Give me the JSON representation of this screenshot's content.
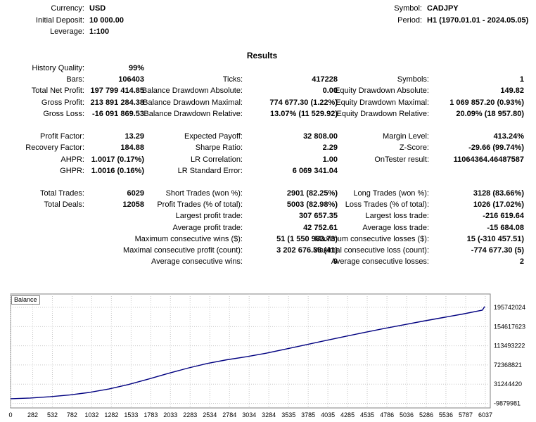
{
  "header": {
    "left": [
      {
        "label": "Currency:",
        "value": "USD"
      },
      {
        "label": "Initial Deposit:",
        "value": "10 000.00"
      },
      {
        "label": "Leverage:",
        "value": "1:100"
      }
    ],
    "right": [
      {
        "label": "Symbol:",
        "value": "CADJPY"
      },
      {
        "label": "Period:",
        "value": "H1 (1970.01.01 - 2024.05.05)"
      }
    ]
  },
  "results_title": "Results",
  "stats_rows": [
    [
      {
        "l": "History Quality:",
        "v": "99%"
      },
      null,
      null
    ],
    [
      {
        "l": "Bars:",
        "v": "106403"
      },
      {
        "l": "Ticks:",
        "v": "417228"
      },
      {
        "l": "Symbols:",
        "v": "1"
      }
    ],
    [
      {
        "l": "Total Net Profit:",
        "v": "197 799 414.85"
      },
      {
        "l": "Balance Drawdown Absolute:",
        "v": "0.00"
      },
      {
        "l": "Equity Drawdown Absolute:",
        "v": "149.82"
      }
    ],
    [
      {
        "l": "Gross Profit:",
        "v": "213 891 284.38"
      },
      {
        "l": "Balance Drawdown Maximal:",
        "v": "774 677.30 (1.22%)"
      },
      {
        "l": "Equity Drawdown Maximal:",
        "v": "1 069 857.20 (0.93%)"
      }
    ],
    [
      {
        "l": "Gross Loss:",
        "v": "-16 091 869.53"
      },
      {
        "l": "Balance Drawdown Relative:",
        "v": "13.07% (11 529.92)"
      },
      {
        "l": "Equity Drawdown Relative:",
        "v": "20.09% (18 957.80)"
      }
    ],
    null,
    [
      {
        "l": "Profit Factor:",
        "v": "13.29"
      },
      {
        "l": "Expected Payoff:",
        "v": "32 808.00"
      },
      {
        "l": "Margin Level:",
        "v": "413.24%"
      }
    ],
    [
      {
        "l": "Recovery Factor:",
        "v": "184.88"
      },
      {
        "l": "Sharpe Ratio:",
        "v": "2.29"
      },
      {
        "l": "Z-Score:",
        "v": "-29.66 (99.74%)"
      }
    ],
    [
      {
        "l": "AHPR:",
        "v": "1.0017 (0.17%)"
      },
      {
        "l": "LR Correlation:",
        "v": "1.00"
      },
      {
        "l": "OnTester result:",
        "v": "11064364.46487587"
      }
    ],
    [
      {
        "l": "GHPR:",
        "v": "1.0016 (0.16%)"
      },
      {
        "l": "LR Standard Error:",
        "v": "6 069 341.04"
      },
      null
    ],
    null,
    [
      {
        "l": "Total Trades:",
        "v": "6029"
      },
      {
        "l": "Short Trades (won %):",
        "v": "2901 (82.25%)"
      },
      {
        "l": "Long Trades (won %):",
        "v": "3128 (83.66%)"
      }
    ],
    [
      {
        "l": "Total Deals:",
        "v": "12058"
      },
      {
        "l": "Profit Trades (% of total):",
        "v": "5003 (82.98%)"
      },
      {
        "l": "Loss Trades (% of total):",
        "v": "1026 (17.02%)"
      }
    ],
    [
      null,
      {
        "l": "Largest profit trade:",
        "v": "307 657.35"
      },
      {
        "l": "Largest loss trade:",
        "v": "-216 619.64"
      }
    ],
    [
      null,
      {
        "l": "Average profit trade:",
        "v": "42 752.61"
      },
      {
        "l": "Average loss trade:",
        "v": "-15 684.08"
      }
    ],
    [
      null,
      {
        "l": "Maximum consecutive wins ($):",
        "v": "51 (1 550 983.73)"
      },
      {
        "l": "Maximum consecutive losses ($):",
        "v": "15 (-310 457.51)"
      }
    ],
    [
      null,
      {
        "l": "Maximal consecutive profit (count):",
        "v": "3 202 676.38 (41)"
      },
      {
        "l": "Maximal consecutive loss (count):",
        "v": "-774 677.30 (5)"
      }
    ],
    [
      null,
      {
        "l": "Average consecutive wins:",
        "v": "9"
      },
      {
        "l": "Average consecutive losses:",
        "v": "2"
      }
    ]
  ],
  "chart_data": {
    "type": "line",
    "legend": "Balance",
    "line_color": "#000080",
    "grid_color": "#c8c8c8",
    "border_color": "#808080",
    "x_ticks": [
      0,
      282,
      532,
      782,
      1032,
      1282,
      1533,
      1783,
      2033,
      2283,
      2534,
      2784,
      3034,
      3284,
      3535,
      3785,
      4035,
      4285,
      4535,
      4786,
      5036,
      5286,
      5536,
      5787,
      6037
    ],
    "y_ticks": [
      195742024,
      154617623,
      113493222,
      72368821,
      31244420,
      -9879981
    ],
    "xlim": [
      0,
      6100
    ],
    "ylim": [
      -19700000,
      224460000
    ],
    "grid": true,
    "legend_position": "top-left",
    "series": [
      {
        "name": "Balance",
        "x": [
          0,
          250,
          500,
          750,
          1000,
          1250,
          1500,
          1750,
          2000,
          2250,
          2500,
          2750,
          3000,
          3250,
          3500,
          3750,
          4000,
          4250,
          4500,
          4750,
          5000,
          5250,
          5500,
          5750,
          6000,
          6029
        ],
        "y": [
          10000,
          1500000,
          4200000,
          8100000,
          13500000,
          20800000,
          30500000,
          42000000,
          54000000,
          65500000,
          75500000,
          83500000,
          90000000,
          97500000,
          106500000,
          115500000,
          124500000,
          133500000,
          142000000,
          150500000,
          158500000,
          166500000,
          174000000,
          181500000,
          190000000,
          197809415
        ]
      }
    ]
  }
}
